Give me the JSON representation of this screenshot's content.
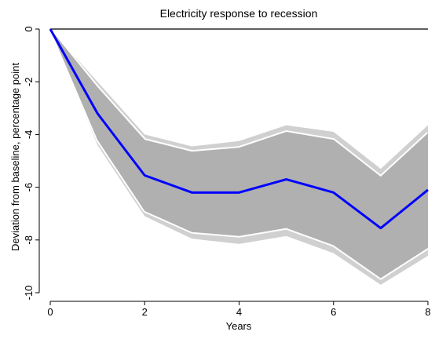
{
  "chart_data": {
    "type": "line",
    "title": "Electricity response to recession",
    "xlabel": "Years",
    "ylabel": "Deviation from baseline, percentage point",
    "x": [
      0,
      1,
      2,
      3,
      4,
      5,
      6,
      7,
      8
    ],
    "xlim": [
      0,
      8
    ],
    "ylim": [
      -10,
      0
    ],
    "xticks": [
      0,
      2,
      4,
      6,
      8
    ],
    "yticks": [
      0,
      -2,
      -4,
      -6,
      -8,
      -10
    ],
    "xtick_labels": [
      "0",
      "2",
      "4",
      "6",
      "8"
    ],
    "ytick_labels": [
      "0",
      "-2",
      "-4",
      "-6",
      "-8",
      "-10"
    ],
    "zero_line": true,
    "grid": false,
    "series": [
      {
        "role": "point_estimate",
        "color": "#0000ff",
        "values": [
          0,
          -3.2,
          -5.55,
          -6.2,
          -6.2,
          -5.7,
          -6.2,
          -7.55,
          -6.1
        ]
      },
      {
        "role": "inner_band",
        "color": "#b0b0b0",
        "lower": [
          0,
          -4.2,
          -6.9,
          -7.7,
          -7.85,
          -7.55,
          -8.2,
          -9.45,
          -8.3
        ],
        "upper": [
          0,
          -2.2,
          -4.2,
          -4.65,
          -4.5,
          -3.9,
          -4.2,
          -5.6,
          -3.95
        ]
      },
      {
        "role": "outer_band",
        "color": "#d0d0d0",
        "lower": [
          0,
          -4.4,
          -7.1,
          -7.95,
          -8.15,
          -7.85,
          -8.5,
          -9.7,
          -8.6
        ],
        "upper": [
          0,
          -2.0,
          -4.0,
          -4.45,
          -4.25,
          -3.65,
          -3.9,
          -5.3,
          -3.65
        ]
      }
    ]
  }
}
